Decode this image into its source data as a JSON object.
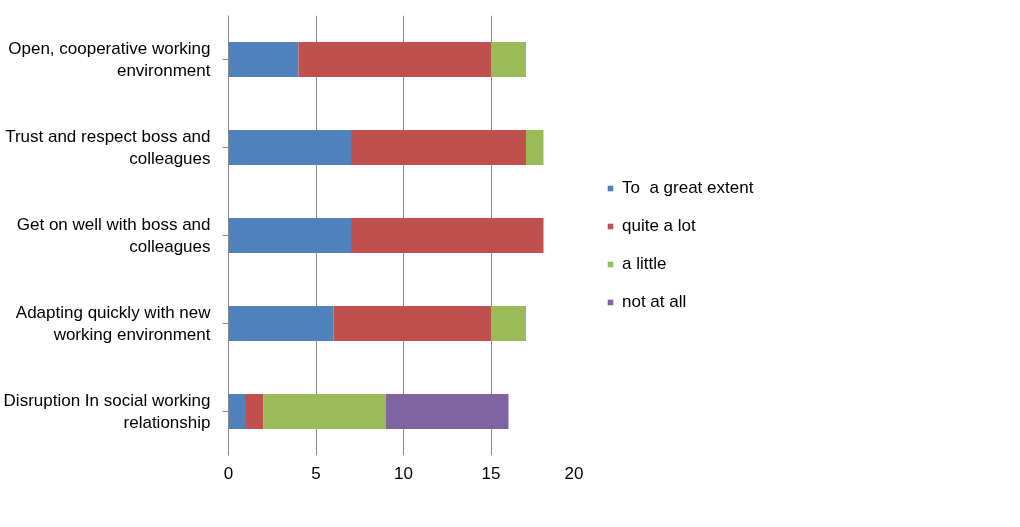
{
  "chart_data": {
    "type": "bar",
    "orientation": "horizontal",
    "stacked": true,
    "categories": [
      "Open, cooperative working environment",
      "Trust and respect boss and colleagues",
      "Get on well with boss and colleagues",
      "Adapting quickly with new working environment",
      "Disruption In social working relationship"
    ],
    "series": [
      {
        "name": "To  a great extent",
        "color": "#4f81bd",
        "values": [
          4,
          7,
          7,
          6,
          1
        ]
      },
      {
        "name": "quite a lot",
        "color": "#c0504d",
        "values": [
          11,
          10,
          11,
          9,
          1
        ]
      },
      {
        "name": "a little",
        "color": "#9bbb59",
        "values": [
          2,
          1,
          0,
          2,
          7
        ]
      },
      {
        "name": "not at all",
        "color": "#8064a2",
        "values": [
          0,
          0,
          0,
          0,
          7
        ]
      }
    ],
    "xlim": [
      0,
      20
    ],
    "xticks": [
      0,
      5,
      10,
      15,
      20
    ],
    "grid": "x",
    "legend": "right"
  }
}
